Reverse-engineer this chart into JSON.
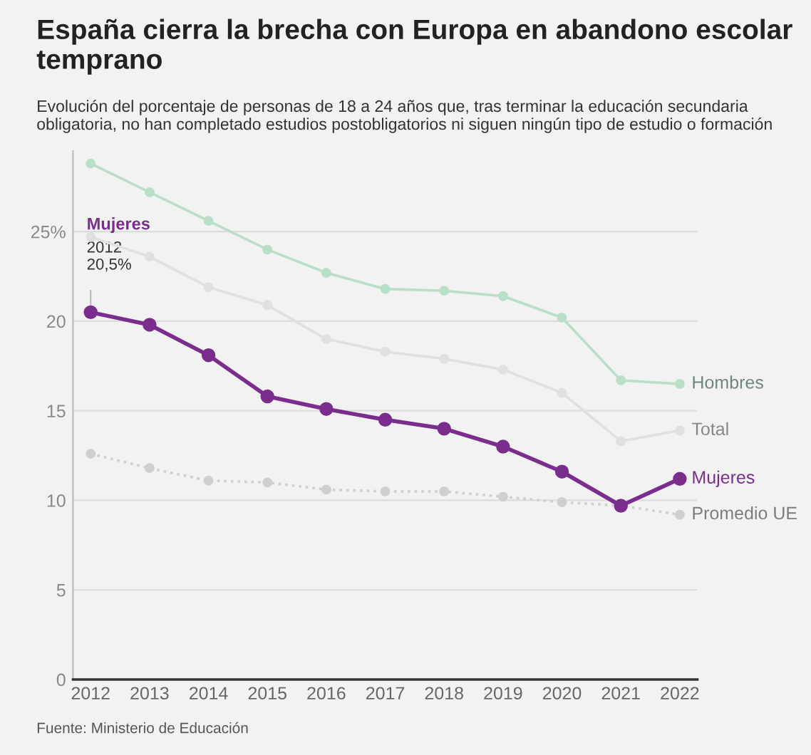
{
  "chart_data": {
    "type": "line",
    "title": "España cierra la brecha con Europa en abandono escolar temprano",
    "subtitle": "Evolución del porcentaje de personas de 18 a 24 años que, tras terminar la educación secundaria obligatoria, no han completado estudios postobligatorios ni siguen ningún tipo de estudio o formación",
    "categories": [
      "2012",
      "2013",
      "2014",
      "2015",
      "2016",
      "2017",
      "2018",
      "2019",
      "2020",
      "2021",
      "2022"
    ],
    "series": [
      {
        "name": "Hombres",
        "color": "#b9dfc9",
        "line_style": "solid",
        "values": [
          28.8,
          27.2,
          25.6,
          24.0,
          22.7,
          21.8,
          21.7,
          21.4,
          20.2,
          16.7,
          16.5
        ]
      },
      {
        "name": "Total",
        "color": "#e0e0e0",
        "line_style": "solid",
        "values": [
          24.7,
          23.6,
          21.9,
          20.9,
          19.0,
          18.3,
          17.9,
          17.3,
          16.0,
          13.3,
          13.9
        ]
      },
      {
        "name": "Promedio UE",
        "color": "#cfcfcf",
        "line_style": "dotted",
        "values": [
          12.6,
          11.8,
          11.1,
          11.0,
          10.6,
          10.5,
          10.5,
          10.2,
          9.9,
          9.7,
          9.2
        ]
      },
      {
        "name": "Mujeres",
        "color": "#7b2d8e",
        "line_style": "solid",
        "values": [
          20.5,
          19.8,
          18.1,
          15.8,
          15.1,
          14.5,
          14.0,
          13.0,
          11.6,
          9.7,
          11.2
        ]
      }
    ],
    "marker": "circle",
    "ylim": [
      0,
      29.5
    ],
    "yticks": [
      0,
      5,
      10,
      15,
      20,
      {
        "value": 25,
        "label": "25%"
      }
    ],
    "grid": "y",
    "annotations": [
      {
        "text": "Mujeres\n2012\n20,5%",
        "x": "2012",
        "y": 20.5
      },
      "Fuente: Ministerio de Educación"
    ]
  }
}
